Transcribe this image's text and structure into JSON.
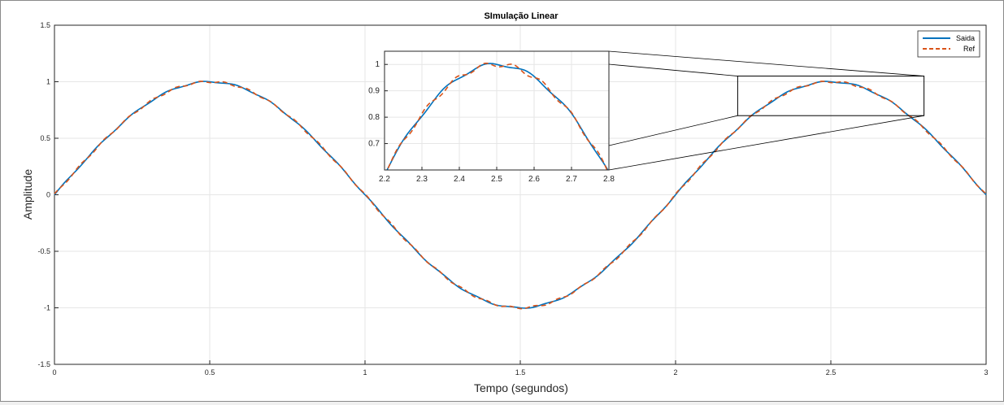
{
  "chart_data": [
    {
      "type": "line",
      "title": "SImulação Linear",
      "xlabel": "Tempo (segundos)",
      "ylabel": "Amplitude",
      "xlim": [
        0,
        3
      ],
      "ylim": [
        -1.5,
        1.5
      ],
      "xticks": [
        0,
        0.5,
        1,
        1.5,
        2,
        2.5,
        3
      ],
      "xtick_labels": [
        "0",
        "0.5",
        "1",
        "1.5",
        "2",
        "2.5",
        "3"
      ],
      "yticks": [
        -1.5,
        -1,
        -0.5,
        0,
        0.5,
        1,
        1.5
      ],
      "ytick_labels": [
        "-1.5",
        "-1",
        "-0.5",
        "0",
        "0.5",
        "1",
        "1.5"
      ],
      "grid": true,
      "legend": "top-right",
      "series": [
        {
          "name": "Saida",
          "color": "#0072BD",
          "style": "solid",
          "function": "sin(pi*t)",
          "t_step": 0.01
        },
        {
          "name": "Ref",
          "color": "#D95319",
          "style": "dashed",
          "function": "sin(pi*t)",
          "t_step": 0.01
        }
      ]
    },
    {
      "type": "line",
      "title": "",
      "xlabel": "",
      "ylabel": "",
      "xlim": [
        2.2,
        2.8
      ],
      "ylim": [
        0.6,
        1.05
      ],
      "xticks": [
        2.2,
        2.3,
        2.4,
        2.5,
        2.6,
        2.7,
        2.8
      ],
      "xtick_labels": [
        "2.2",
        "2.3",
        "2.4",
        "2.5",
        "2.6",
        "2.7",
        "2.8"
      ],
      "yticks": [
        0.7,
        0.8,
        0.9,
        1
      ],
      "ytick_labels": [
        "0.7",
        "0.8",
        "0.9",
        "1"
      ],
      "grid": true,
      "series": [
        {
          "name": "Saida",
          "color": "#0072BD",
          "style": "solid"
        },
        {
          "name": "Ref",
          "color": "#D95319",
          "style": "dashed"
        }
      ]
    }
  ]
}
